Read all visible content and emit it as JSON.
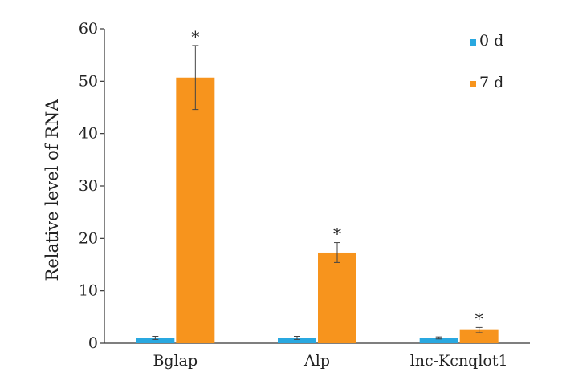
{
  "chart_data": {
    "type": "bar",
    "title": "",
    "xlabel": "",
    "ylabel": "Relative level of RNA",
    "ylim": [
      0,
      60
    ],
    "yticks": [
      0,
      10,
      20,
      30,
      40,
      50,
      60
    ],
    "grid": false,
    "legend_position": "top-right",
    "categories": [
      "Bglap",
      "Alp",
      "lnc-Kcnqlot1"
    ],
    "series": [
      {
        "name": "0 d",
        "color": "#29a8e0",
        "values": [
          1.0,
          1.0,
          1.0
        ],
        "errors": [
          0.3,
          0.3,
          0.2
        ],
        "significance": [
          "",
          "",
          ""
        ]
      },
      {
        "name": "7 d",
        "color": "#f7941d",
        "values": [
          50.7,
          17.3,
          2.5
        ],
        "errors": [
          6.1,
          1.9,
          0.5
        ],
        "significance": [
          "*",
          "*",
          "*"
        ]
      }
    ]
  }
}
